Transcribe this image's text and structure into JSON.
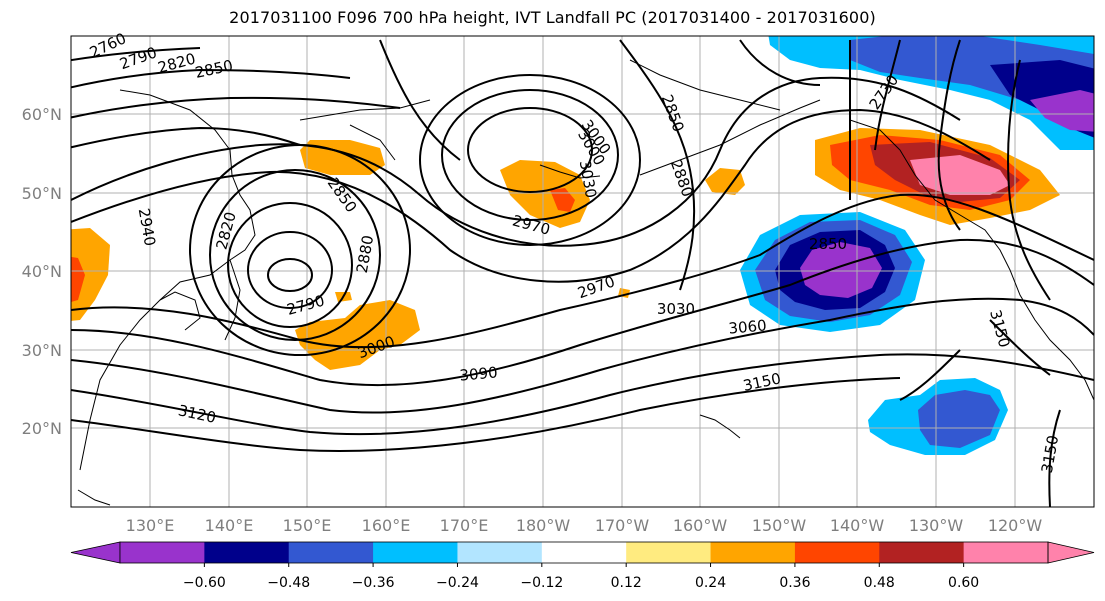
{
  "title": "2017031100 F096 700 hPa height, IVT Landfall PC (2017031400 - 2017031600)",
  "lat_labels": [
    "60°N",
    "50°N",
    "40°N",
    "30°N",
    "20°N"
  ],
  "lon_labels": [
    "130°E",
    "140°E",
    "150°E",
    "160°E",
    "170°E",
    "180°W",
    "170°W",
    "160°W",
    "150°W",
    "140°W",
    "130°W",
    "120°W"
  ],
  "contour_labels": [
    "2760",
    "2790",
    "2820",
    "2850",
    "3000",
    "3030",
    "3000",
    "2880",
    "2970",
    "2970",
    "3030",
    "3060",
    "3090",
    "3120",
    "3150",
    "2850",
    "2730",
    "2940",
    "2820",
    "2850",
    "2880",
    "2790",
    "3000",
    "3150",
    "3150",
    "2850"
  ],
  "colorbar": {
    "colors": [
      "#9933cc",
      "#00008b",
      "#3358d1",
      "#00bfff",
      "#b2e5ff",
      "#ffffff",
      "#ffeb80",
      "#ffa500",
      "#ff4500",
      "#b22222",
      "#ff82ab"
    ],
    "ticks": [
      "−0.60",
      "−0.48",
      "−0.36",
      "−0.24",
      "−0.12",
      "0.12",
      "0.24",
      "0.36",
      "0.48",
      "0.60"
    ]
  }
}
